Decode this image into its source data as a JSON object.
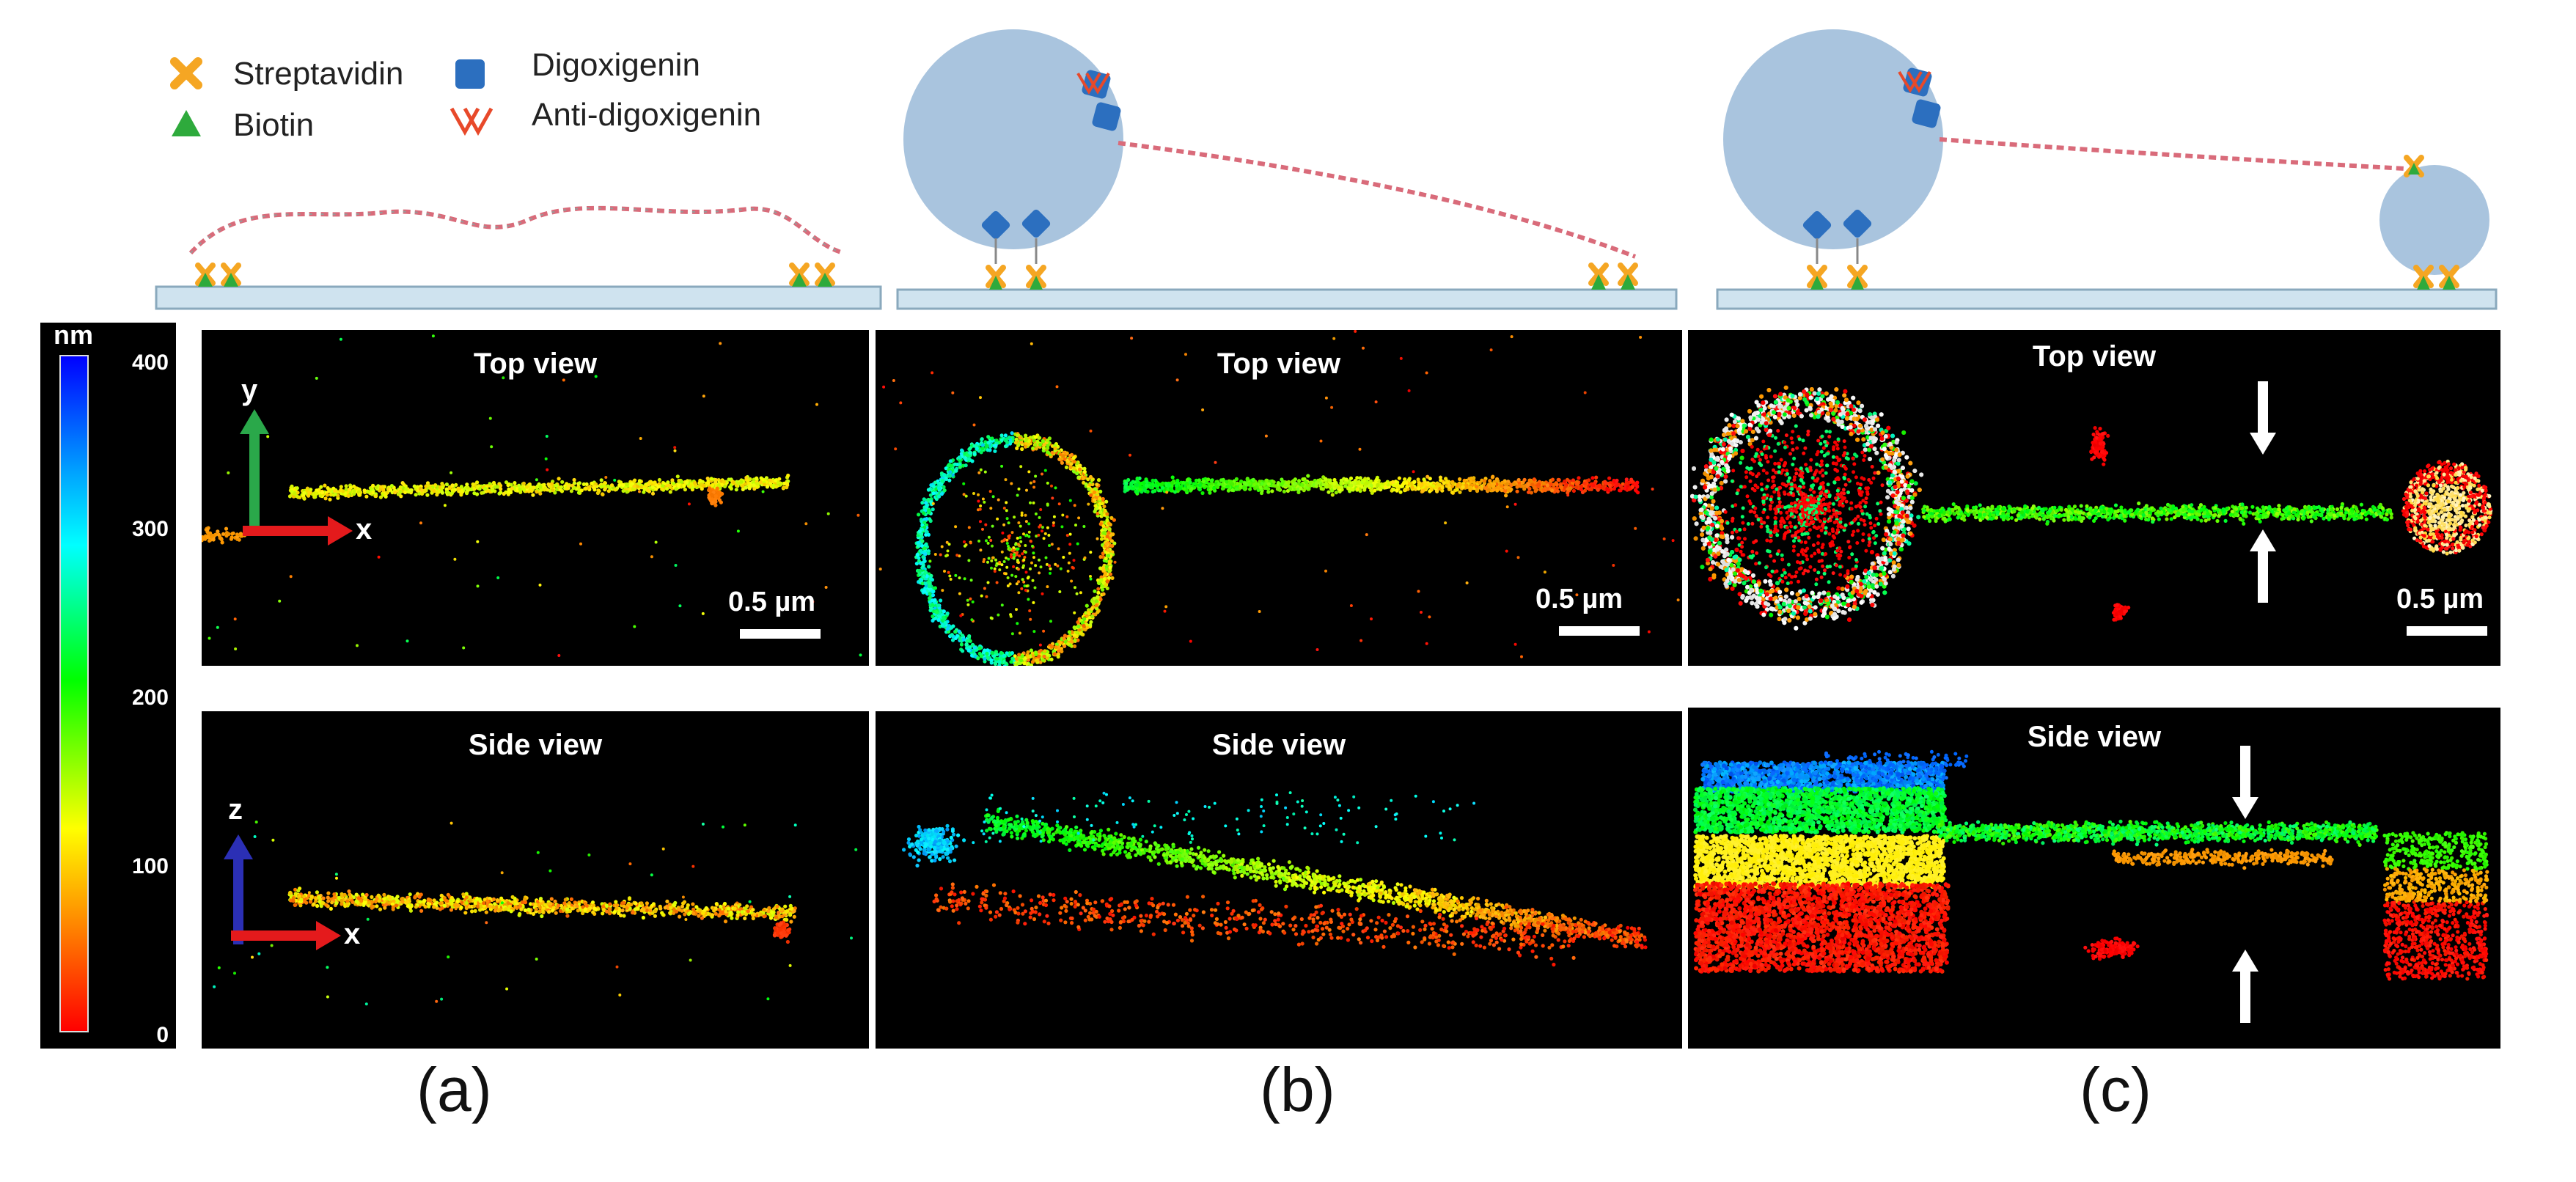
{
  "legend": {
    "streptavidin": "Streptavidin",
    "biotin": "Biotin",
    "digoxigenin": "Digoxigenin",
    "anti_digoxigenin": "Anti-digoxigenin"
  },
  "colorbar": {
    "unit": "nm",
    "ticks": [
      "400",
      "300",
      "200",
      "100",
      "0"
    ],
    "colors": [
      "#0000ff",
      "#00aaff",
      "#00ffff",
      "#00ff00",
      "#ffff00",
      "#ff8000",
      "#ff0000"
    ]
  },
  "views": {
    "top": "Top view",
    "side": "Side view"
  },
  "scale": {
    "label": "0.5 µm"
  },
  "axes": {
    "x": "x",
    "y": "y",
    "z": "z"
  },
  "panel_labels": {
    "a": "(a)",
    "b": "(b)",
    "c": "(c)"
  },
  "colors": {
    "streptavidin": "#f5a623",
    "biotin": "#2eaa3c",
    "digoxigenin": "#2c6fbf",
    "anti_digoxigenin": "#e8492a",
    "bead": "#a9c4de",
    "surface": "#cfe3ef",
    "dna": "#d96b7a"
  }
}
